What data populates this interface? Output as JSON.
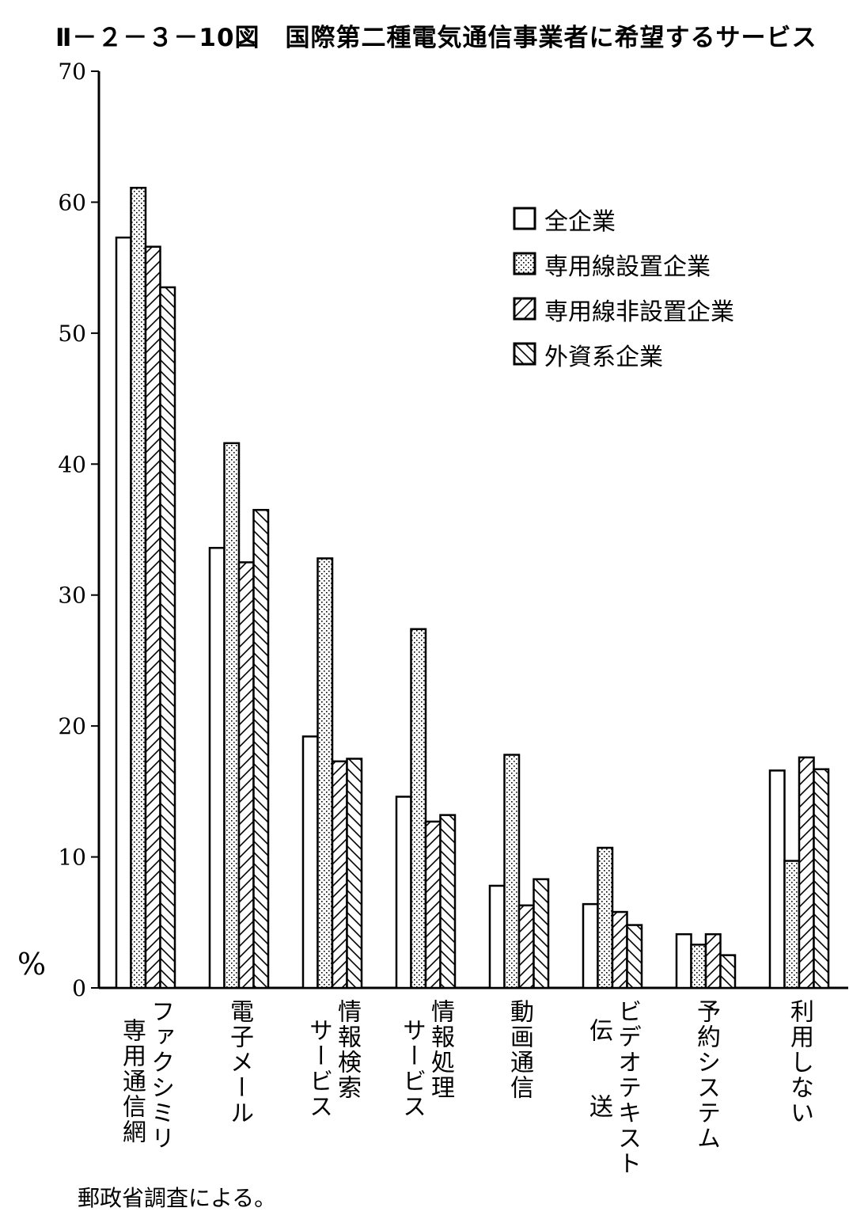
{
  "title": "Ⅱ－２－３－10図　国際第二種電気通信事業者に希望するサービス",
  "source": "郵政省調査による。",
  "chart_data": {
    "type": "bar",
    "title": "Ⅱ－２－３－10図　国際第二種電気通信事業者に希望するサービス",
    "ylabel": "%",
    "ylim": [
      0,
      70
    ],
    "yticks": [
      "0",
      "10",
      "20",
      "30",
      "40",
      "50",
      "60",
      "70"
    ],
    "grid": false,
    "legend_position": "top-right",
    "categories": [
      {
        "lines": [
          "ファクシミリ",
          "専用通信網"
        ]
      },
      {
        "lines": [
          "電子メール"
        ]
      },
      {
        "lines": [
          "情報検索",
          "サービス"
        ]
      },
      {
        "lines": [
          "情報処理",
          "サービス"
        ]
      },
      {
        "lines": [
          "動画通信"
        ]
      },
      {
        "lines": [
          "ビデオテキスト",
          "伝　　送"
        ]
      },
      {
        "lines": [
          "予約システム"
        ]
      },
      {
        "lines": [
          "利用しない"
        ]
      }
    ],
    "series": [
      {
        "name": "全企業",
        "pattern": "blank",
        "values": [
          57.3,
          33.6,
          19.2,
          14.6,
          7.8,
          6.4,
          4.1,
          16.6
        ]
      },
      {
        "name": "専用線設置企業",
        "pattern": "dots",
        "values": [
          61.1,
          41.6,
          32.8,
          27.4,
          17.8,
          10.7,
          3.3,
          9.7
        ]
      },
      {
        "name": "専用線非設置企業",
        "pattern": "forward-hatch",
        "values": [
          56.6,
          32.5,
          17.3,
          12.7,
          6.3,
          5.8,
          4.1,
          17.6
        ]
      },
      {
        "name": "外資系企業",
        "pattern": "back-hatch",
        "values": [
          53.5,
          36.5,
          17.5,
          13.2,
          8.3,
          4.8,
          2.5,
          16.7
        ]
      }
    ]
  }
}
